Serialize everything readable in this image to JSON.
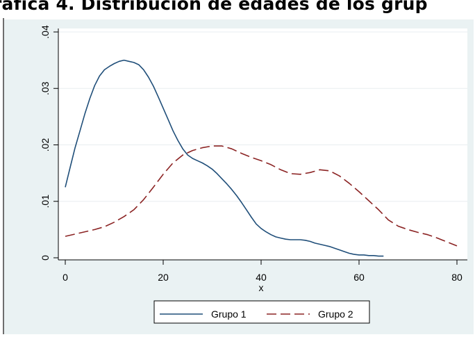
{
  "page": {
    "title": "ráfica 4. Distribución de edades de los grup"
  },
  "chart_data": {
    "type": "line",
    "title": "",
    "xlabel": "x",
    "ylabel": "",
    "xlim": [
      0,
      80
    ],
    "ylim": [
      0,
      0.04
    ],
    "xticks": [
      0,
      20,
      40,
      60,
      80
    ],
    "yticks": [
      0,
      0.01,
      0.02,
      0.03,
      0.04
    ],
    "xtick_labels": [
      "0",
      "20",
      "40",
      "60",
      "80"
    ],
    "ytick_labels": [
      "0",
      ".01",
      ".02",
      ".03",
      ".04"
    ],
    "grid": "horizontal",
    "legend": "bottom",
    "series": [
      {
        "name": "Grupo 1",
        "color": "#1f4e79",
        "dash": "solid",
        "x": [
          0,
          1,
          2,
          3,
          4,
          5,
          6,
          7,
          8,
          9,
          10,
          11,
          12,
          13,
          14,
          15,
          16,
          17,
          18,
          19,
          20,
          21,
          22,
          23,
          24,
          25,
          26,
          27,
          28,
          29,
          30,
          31,
          32,
          33,
          34,
          35,
          36,
          37,
          38,
          39,
          40,
          41,
          42,
          43,
          44,
          45,
          46,
          47,
          48,
          49,
          50,
          51,
          52,
          53,
          54,
          55,
          56,
          57,
          58,
          59,
          60,
          61,
          62,
          63,
          64,
          65
        ],
        "y": [
          0.0125,
          0.016,
          0.0195,
          0.0225,
          0.0255,
          0.0282,
          0.0305,
          0.0322,
          0.0333,
          0.0339,
          0.0344,
          0.0348,
          0.035,
          0.0348,
          0.0346,
          0.0342,
          0.0333,
          0.032,
          0.0304,
          0.0285,
          0.0265,
          0.0245,
          0.0225,
          0.0208,
          0.0193,
          0.0182,
          0.0176,
          0.0172,
          0.0168,
          0.0163,
          0.0157,
          0.0149,
          0.014,
          0.0131,
          0.0121,
          0.011,
          0.0098,
          0.0085,
          0.0072,
          0.006,
          0.0052,
          0.0046,
          0.0041,
          0.0037,
          0.0035,
          0.0033,
          0.0032,
          0.0032,
          0.0032,
          0.0031,
          0.0029,
          0.0026,
          0.0024,
          0.0022,
          0.002,
          0.0017,
          0.0014,
          0.0011,
          0.0008,
          0.0006,
          0.0005,
          0.0005,
          0.0004,
          0.0004,
          0.0003,
          0.0003
        ]
      },
      {
        "name": "Grupo 2",
        "color": "#8b2323",
        "dash": "long-dash",
        "x": [
          0,
          2,
          4,
          6,
          8,
          10,
          12,
          14,
          16,
          18,
          20,
          22,
          24,
          26,
          28,
          30,
          32,
          34,
          36,
          38,
          40,
          42,
          44,
          46,
          48,
          50,
          52,
          54,
          56,
          58,
          60,
          62,
          64,
          66,
          68,
          70,
          72,
          74,
          76,
          78,
          80
        ],
        "y": [
          0.0038,
          0.0042,
          0.0046,
          0.005,
          0.0055,
          0.0063,
          0.0073,
          0.0085,
          0.0103,
          0.0125,
          0.0148,
          0.0168,
          0.0182,
          0.019,
          0.0195,
          0.0198,
          0.0198,
          0.0193,
          0.0185,
          0.0178,
          0.0172,
          0.0165,
          0.0156,
          0.0149,
          0.0148,
          0.0151,
          0.0156,
          0.0154,
          0.0145,
          0.0132,
          0.0117,
          0.0101,
          0.0085,
          0.0067,
          0.0056,
          0.005,
          0.0045,
          0.0041,
          0.0035,
          0.0028,
          0.0021
        ]
      }
    ]
  }
}
